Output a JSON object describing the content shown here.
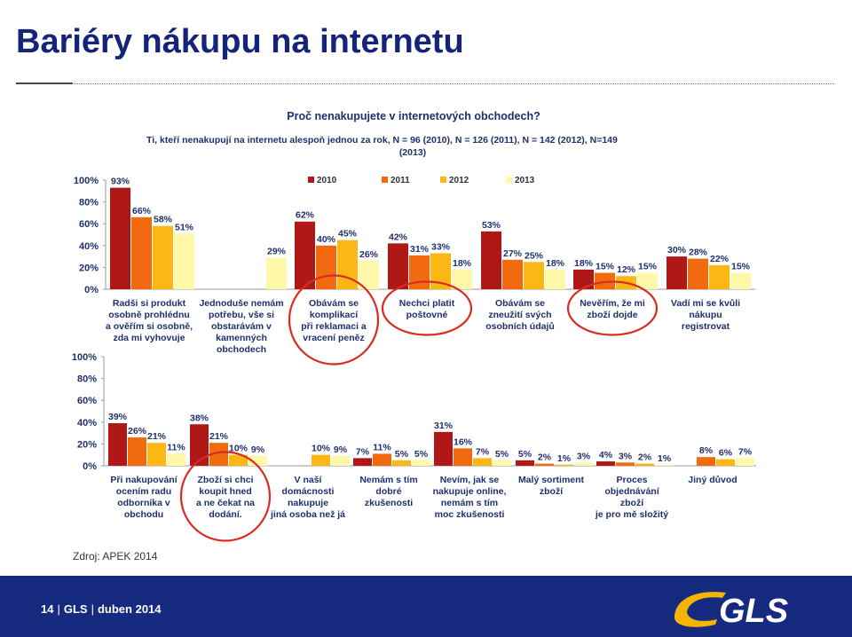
{
  "slide": {
    "title": "Bariéry nákupu na internetu",
    "source": "Zdroj: APEK 2014",
    "footer": {
      "page": "14",
      "brand": "GLS",
      "date": "duben 2014"
    },
    "logo_text": "GLS",
    "colors": {
      "title": "#13247a",
      "footer": "#162a80",
      "logo_yellow": "#f5b400",
      "highlight": "#d92b22"
    }
  },
  "chart_data": {
    "type": "bar",
    "title": "Proč nenakupujete v internetových obchodech?",
    "subtitle": "Ti, kteří nenakupují na internetu alespoň jednou za rok, N = 96 (2010), N = 126 (2011), N = 142 (2012), N=149 (2013)",
    "ylim": [
      0,
      100
    ],
    "yticks": [
      "100%",
      "80%",
      "60%",
      "40%",
      "20%",
      "0%"
    ],
    "grid": false,
    "legend_position": "top-center",
    "series": [
      {
        "name": "2010",
        "color": "#b01818"
      },
      {
        "name": "2011",
        "color": "#f26a10"
      },
      {
        "name": "2012",
        "color": "#fdb714"
      },
      {
        "name": "2013",
        "color": "#fff8a8"
      }
    ],
    "panels": [
      {
        "categories": [
          {
            "label": [
              "Radši si produkt",
              "osobně prohlédnu",
              "a ověřím si osobně,",
              "zda mi vyhovuje"
            ],
            "values": [
              93,
              66,
              58,
              51
            ],
            "labels": [
              "93%",
              "66%",
              "58%",
              "51%"
            ],
            "highlight": false
          },
          {
            "label": [
              "Jednoduše nemám",
              "potřebu, vše si",
              "obstarávám v",
              "kamenných",
              "obchodech"
            ],
            "values": [
              null,
              null,
              null,
              29
            ],
            "labels": [
              "",
              "",
              "",
              "29%"
            ],
            "highlight": false
          },
          {
            "label": [
              "Obávám se",
              "komplikací",
              "při reklamaci a",
              "vracení peněz"
            ],
            "values": [
              62,
              40,
              45,
              26
            ],
            "labels": [
              "62%",
              "40%",
              "45%",
              "26%"
            ],
            "highlight": true
          },
          {
            "label": [
              "Nechci platit",
              "poštovné"
            ],
            "values": [
              42,
              31,
              33,
              18
            ],
            "labels": [
              "42%",
              "31%",
              "33%",
              "18%"
            ],
            "highlight": true
          },
          {
            "label": [
              "Obávám se",
              "zneužití svých",
              "osobních údajů"
            ],
            "values": [
              53,
              27,
              25,
              18
            ],
            "labels": [
              "53%",
              "27%",
              "25%",
              "18%"
            ],
            "highlight": false
          },
          {
            "label": [
              "Nevěřím, že mi",
              "zboží dojde"
            ],
            "values": [
              18,
              15,
              12,
              15
            ],
            "labels": [
              "18%",
              "15%",
              "12%",
              "15%"
            ],
            "highlight": true
          },
          {
            "label": [
              "Vadí mi se kvůli",
              "nákupu",
              "registrovat"
            ],
            "values": [
              30,
              28,
              22,
              15
            ],
            "labels": [
              "30%",
              "28%",
              "22%",
              "15%"
            ],
            "highlight": false
          }
        ]
      },
      {
        "categories": [
          {
            "label": [
              "Při nakupování",
              "ocením radu",
              "odborníka v",
              "obchodu"
            ],
            "values": [
              39,
              26,
              21,
              11
            ],
            "labels": [
              "39%",
              "26%",
              "21%",
              "11%"
            ],
            "highlight": false
          },
          {
            "label": [
              "Zboží si chci",
              "koupit hned",
              "a ne čekat na",
              "dodání."
            ],
            "values": [
              38,
              21,
              10,
              9
            ],
            "labels": [
              "38%",
              "21%",
              "10%",
              "9%"
            ],
            "highlight": true
          },
          {
            "label": [
              "V naší",
              "domácnosti",
              "nakupuje",
              "jiná osoba než já"
            ],
            "values": [
              null,
              null,
              10,
              9
            ],
            "labels": [
              "",
              "",
              "10%",
              "9%"
            ],
            "highlight": false
          },
          {
            "label": [
              "Nemám s tím",
              "dobré",
              "zkušenosti"
            ],
            "values": [
              7,
              11,
              5,
              5
            ],
            "labels": [
              "7%",
              "11%",
              "5%",
              "5%"
            ],
            "highlight": false
          },
          {
            "label": [
              "Nevím, jak se",
              "nakupuje online,",
              "nemám s tím",
              "moc zkušenosti"
            ],
            "values": [
              31,
              16,
              7,
              5
            ],
            "labels": [
              "31%",
              "16%",
              "7%",
              "5%"
            ],
            "highlight": false
          },
          {
            "label": [
              "Malý sortiment",
              "zboží"
            ],
            "values": [
              5,
              2,
              1,
              3
            ],
            "labels": [
              "5%",
              "2%",
              "1%",
              "3%"
            ],
            "highlight": false
          },
          {
            "label": [
              "Proces",
              "objednávání",
              "zboží",
              "je pro mě složitý"
            ],
            "values": [
              4,
              3,
              2,
              1
            ],
            "labels": [
              "4%",
              "3%",
              "2%",
              "1%"
            ],
            "highlight": false
          },
          {
            "label": [
              "Jiný důvod"
            ],
            "values": [
              null,
              8,
              6,
              7
            ],
            "labels": [
              "",
              "8%",
              "6%",
              "7%"
            ],
            "highlight": false
          }
        ]
      }
    ]
  }
}
